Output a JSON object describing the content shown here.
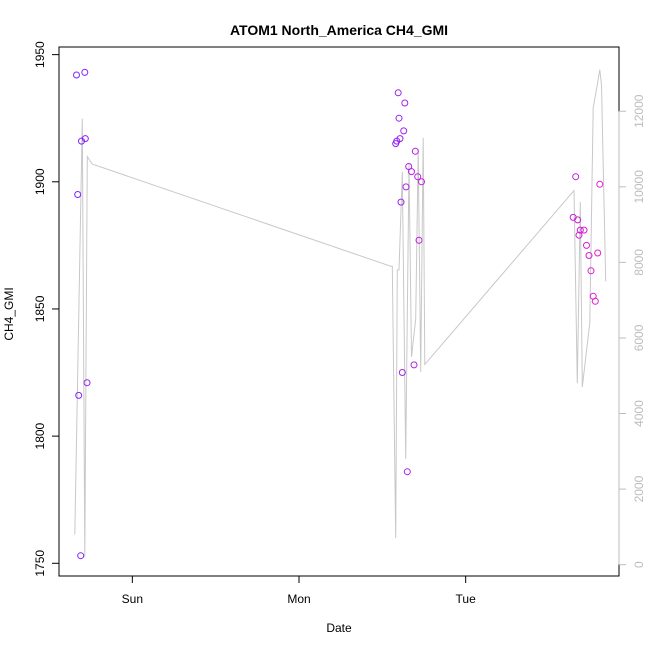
{
  "chart_data": {
    "type": "scatter",
    "title": "ATOM1 North_America CH4_GMI",
    "xlabel": "Date",
    "ylabel": "CH4_GMI",
    "x_axis": {
      "ticks": [
        {
          "label": "Sun",
          "value": 1
        },
        {
          "label": "Mon",
          "value": 2
        },
        {
          "label": "Tue",
          "value": 3
        }
      ],
      "range": [
        0.56,
        3.92
      ]
    },
    "y_axis_left": {
      "range": [
        1745,
        1953
      ],
      "ticks": [
        1750,
        1800,
        1850,
        1900,
        1950
      ]
    },
    "y_axis_right": {
      "range": [
        -300,
        13700
      ],
      "ticks": [
        0,
        2000,
        4000,
        6000,
        8000,
        10000,
        12000
      ],
      "color": "#bdbdbd"
    },
    "grid": false,
    "series": [
      {
        "kind": "points",
        "axis": "left",
        "marker": "open-circle",
        "color_start": "#7a28ff",
        "color_end": "#e81dcc",
        "points": [
          {
            "x": 0.665,
            "y": 1942
          },
          {
            "x": 0.672,
            "y": 1895
          },
          {
            "x": 0.678,
            "y": 1816
          },
          {
            "x": 0.69,
            "y": 1753
          },
          {
            "x": 0.695,
            "y": 1916
          },
          {
            "x": 0.715,
            "y": 1943
          },
          {
            "x": 0.718,
            "y": 1917
          },
          {
            "x": 0.728,
            "y": 1821
          },
          {
            "x": 2.58,
            "y": 1915
          },
          {
            "x": 2.587,
            "y": 1916
          },
          {
            "x": 2.595,
            "y": 1935
          },
          {
            "x": 2.6,
            "y": 1925
          },
          {
            "x": 2.606,
            "y": 1917
          },
          {
            "x": 2.612,
            "y": 1892
          },
          {
            "x": 2.62,
            "y": 1825
          },
          {
            "x": 2.628,
            "y": 1920
          },
          {
            "x": 2.635,
            "y": 1931
          },
          {
            "x": 2.642,
            "y": 1898
          },
          {
            "x": 2.65,
            "y": 1786
          },
          {
            "x": 2.658,
            "y": 1906
          },
          {
            "x": 2.675,
            "y": 1904
          },
          {
            "x": 2.69,
            "y": 1828
          },
          {
            "x": 2.698,
            "y": 1912
          },
          {
            "x": 2.712,
            "y": 1902
          },
          {
            "x": 2.72,
            "y": 1877
          },
          {
            "x": 2.735,
            "y": 1900
          },
          {
            "x": 3.645,
            "y": 1886
          },
          {
            "x": 3.66,
            "y": 1902
          },
          {
            "x": 3.672,
            "y": 1885
          },
          {
            "x": 3.68,
            "y": 1879
          },
          {
            "x": 3.688,
            "y": 1881
          },
          {
            "x": 3.71,
            "y": 1881
          },
          {
            "x": 3.725,
            "y": 1875
          },
          {
            "x": 3.74,
            "y": 1871
          },
          {
            "x": 3.752,
            "y": 1865
          },
          {
            "x": 3.765,
            "y": 1855
          },
          {
            "x": 3.778,
            "y": 1853
          },
          {
            "x": 3.792,
            "y": 1872
          },
          {
            "x": 3.805,
            "y": 1899
          }
        ]
      },
      {
        "kind": "line",
        "axis": "right",
        "color": "#c8c8c8",
        "points": [
          {
            "x": 0.655,
            "y": 800
          },
          {
            "x": 0.7,
            "y": 11800
          },
          {
            "x": 0.715,
            "y": 200
          },
          {
            "x": 0.73,
            "y": 10800
          },
          {
            "x": 0.76,
            "y": 10600
          },
          {
            "x": 2.55,
            "y": 7900
          },
          {
            "x": 2.56,
            "y": 7900
          },
          {
            "x": 2.58,
            "y": 700
          },
          {
            "x": 2.59,
            "y": 7800
          },
          {
            "x": 2.6,
            "y": 7800
          },
          {
            "x": 2.62,
            "y": 10400
          },
          {
            "x": 2.64,
            "y": 2800
          },
          {
            "x": 2.66,
            "y": 10600
          },
          {
            "x": 2.675,
            "y": 5500
          },
          {
            "x": 2.7,
            "y": 6500
          },
          {
            "x": 2.715,
            "y": 11000
          },
          {
            "x": 2.73,
            "y": 5100
          },
          {
            "x": 2.745,
            "y": 11300
          },
          {
            "x": 2.755,
            "y": 5300
          },
          {
            "x": 3.65,
            "y": 9900
          },
          {
            "x": 3.67,
            "y": 4800
          },
          {
            "x": 3.688,
            "y": 9600
          },
          {
            "x": 3.7,
            "y": 4700
          },
          {
            "x": 3.745,
            "y": 6400
          },
          {
            "x": 3.765,
            "y": 12100
          },
          {
            "x": 3.79,
            "y": 12700
          },
          {
            "x": 3.805,
            "y": 13100
          },
          {
            "x": 3.815,
            "y": 12700
          },
          {
            "x": 3.84,
            "y": 7500
          }
        ]
      }
    ]
  }
}
